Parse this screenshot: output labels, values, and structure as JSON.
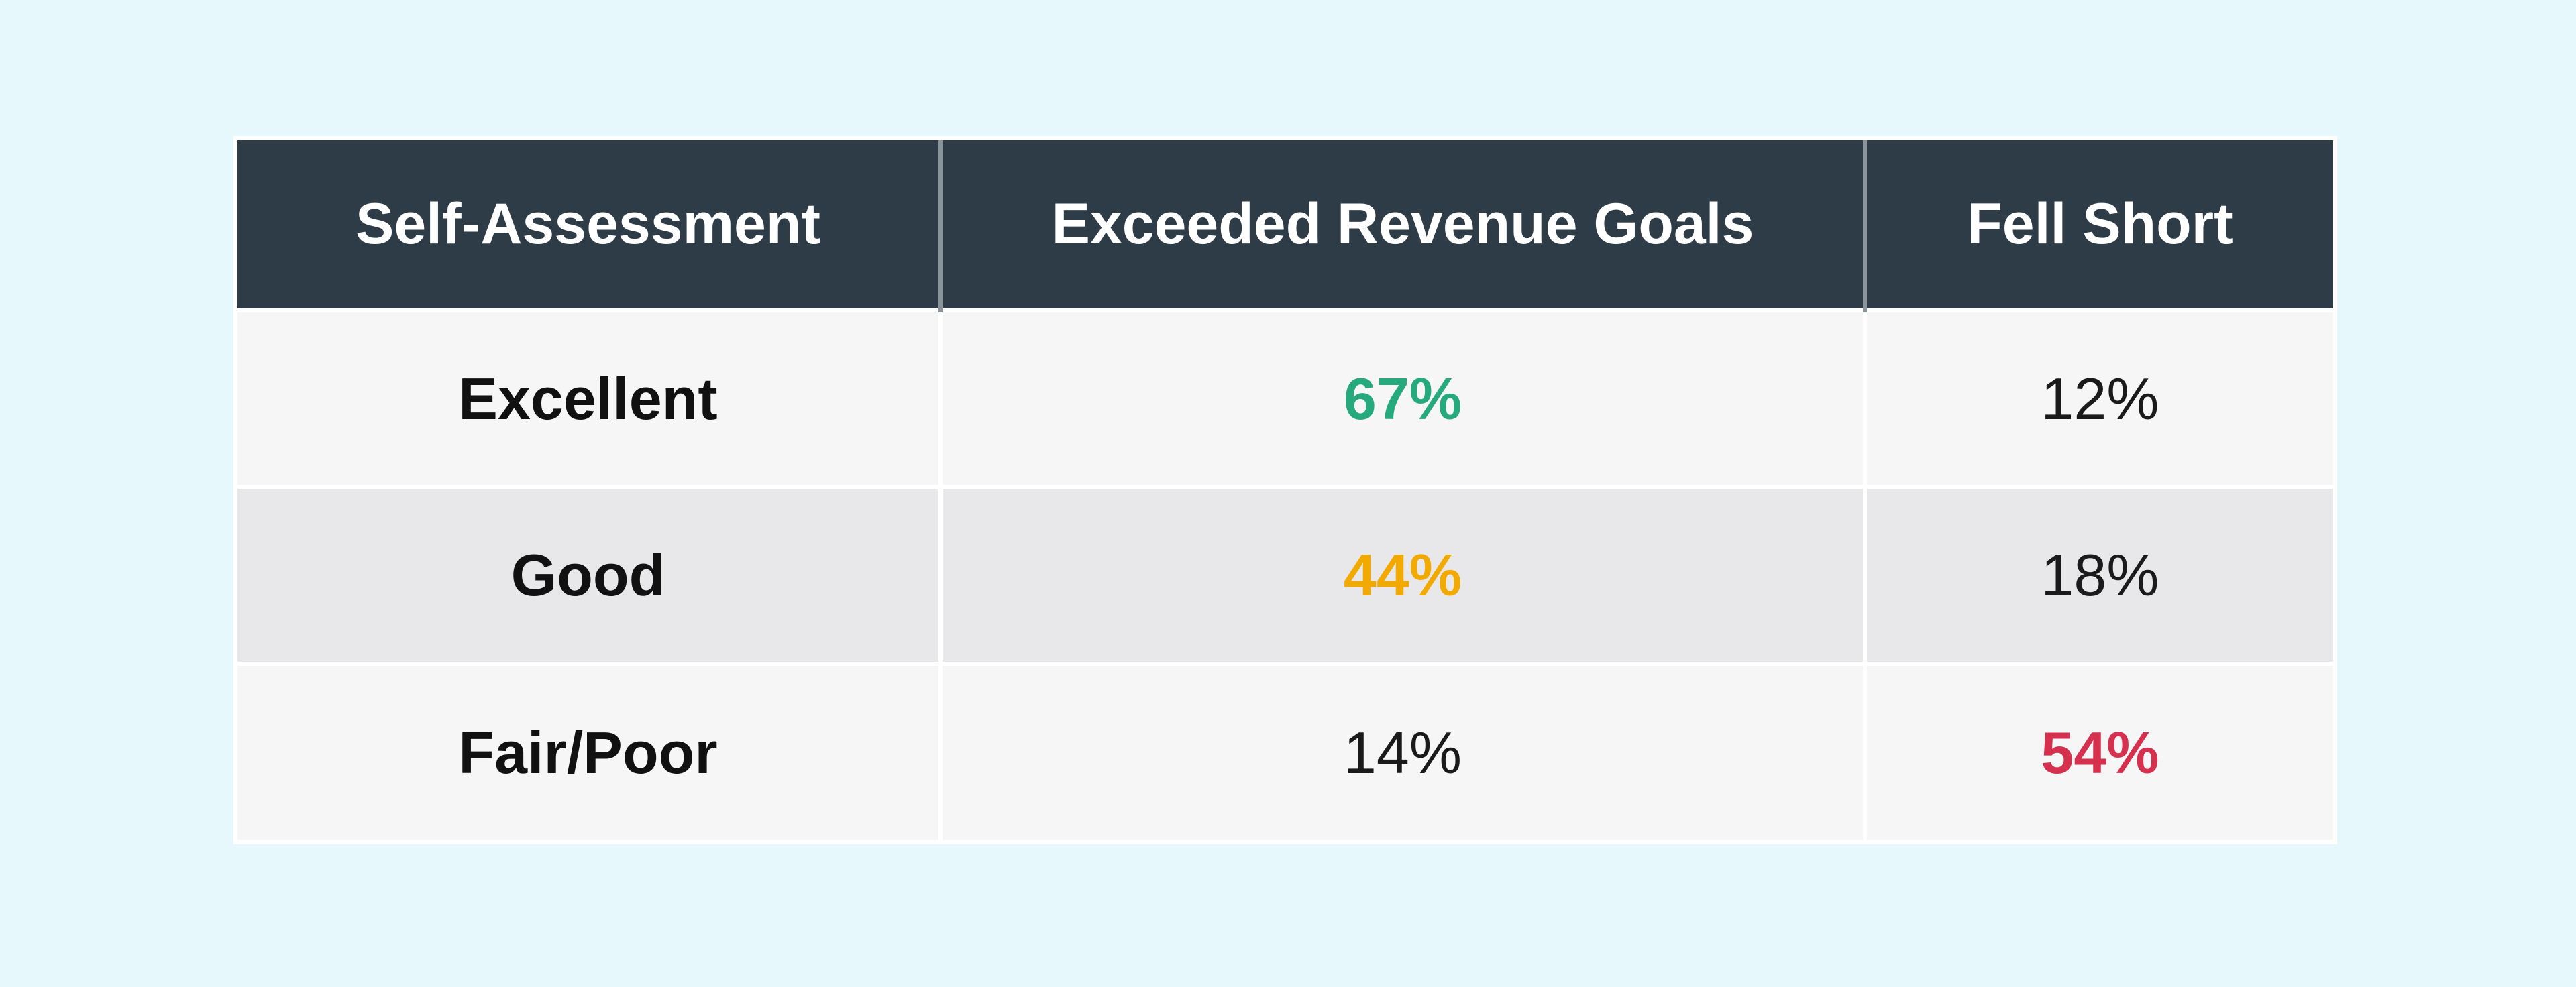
{
  "chart_data": {
    "type": "table",
    "columns": [
      "Self-Assessment",
      "Exceeded Revenue Goals",
      "Fell Short"
    ],
    "rows": [
      {
        "label": "Excellent",
        "exceeded": "67%",
        "fell_short": "12%"
      },
      {
        "label": "Good",
        "exceeded": "44%",
        "fell_short": "18%"
      },
      {
        "label": "Fair/Poor",
        "exceeded": "14%",
        "fell_short": "54%"
      }
    ],
    "highlights": [
      {
        "row": 0,
        "column": "exceeded",
        "color": "#27a97e"
      },
      {
        "row": 1,
        "column": "exceeded",
        "color": "#f2a900"
      },
      {
        "row": 2,
        "column": "fell_short",
        "color": "#d6304f"
      }
    ]
  },
  "colors": {
    "page_background": "#e6f8fc",
    "header_background": "#2e3c48",
    "header_text": "#ffffff",
    "row_light": "#f6f6f7",
    "row_dark": "#e8e8ea",
    "body_text": "#1a1a1a"
  }
}
